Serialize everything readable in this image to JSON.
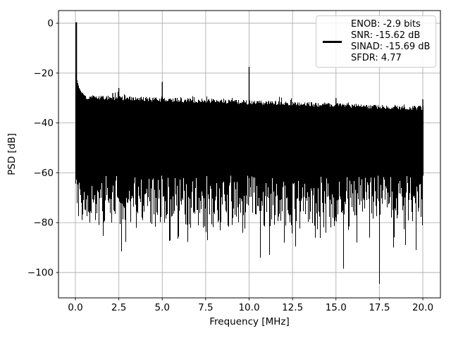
{
  "chart_data": {
    "type": "line",
    "title": "",
    "xlabel": "Frequency [MHz]",
    "ylabel": "PSD [dB]",
    "xticks": [
      0.0,
      2.5,
      5.0,
      7.5,
      10.0,
      12.5,
      15.0,
      17.5,
      20.0
    ],
    "xtick_labels": [
      "0.0",
      "2.5",
      "5.0",
      "7.5",
      "10.0",
      "12.5",
      "15.0",
      "17.5",
      "20.0"
    ],
    "yticks": [
      0,
      -20,
      -40,
      -60,
      -80,
      -100
    ],
    "ytick_labels": [
      "0",
      "−20",
      "−40",
      "−60",
      "−80",
      "−100"
    ],
    "xlim": [
      -1.0,
      21.0
    ],
    "ylim": [
      -110.2,
      5.1
    ],
    "grid": true,
    "grid_color": "#b0b0b0",
    "line_color": "#000000",
    "background_color": "#ffffff",
    "legend": {
      "position": "upper right",
      "lines": [
        "ENOB: -2.9 bits",
        "SNR: -15.62 dB",
        "SINAD: -15.69 dB",
        "SFDR: 4.77"
      ]
    },
    "metrics": {
      "enob_bits": -2.9,
      "snr_db": -15.62,
      "sinad_db": -15.69,
      "sfdr": 4.77
    },
    "series": [
      {
        "name": "psd",
        "freq_range_mhz": [
          0,
          20
        ],
        "carrier": {
          "freq_mhz": 0.05,
          "level_db": 0.0
        },
        "spurs": [
          [
            2.15,
            -28.0
          ],
          [
            2.5,
            -26.0
          ],
          [
            5.0,
            -23.5
          ],
          [
            10.0,
            -17.5
          ],
          [
            10.25,
            -31.5
          ],
          [
            15.0,
            -30.0
          ],
          [
            20.0,
            -30.5
          ]
        ],
        "carrier_skirt_db": [
          [
            0.0,
            -20.0
          ],
          [
            0.1,
            -23.5
          ],
          [
            0.2,
            -26.0
          ],
          [
            0.35,
            -28.0
          ],
          [
            0.6,
            -29.5
          ]
        ],
        "noise_top_db": [
          [
            0,
            -29.5
          ],
          [
            20,
            -34.0
          ]
        ],
        "noise_bottom_typical_db": -70,
        "deep_notches": [
          [
            0.35,
            -79
          ],
          [
            0.8,
            -80
          ],
          [
            1.35,
            -81
          ],
          [
            2.05,
            -80
          ],
          [
            2.65,
            -91.5
          ],
          [
            3.5,
            -82
          ],
          [
            4.3,
            -80
          ],
          [
            5.1,
            -80
          ],
          [
            5.9,
            -86.5
          ],
          [
            6.6,
            -82
          ],
          [
            7.6,
            -87
          ],
          [
            8.3,
            -83
          ],
          [
            9.0,
            -81
          ],
          [
            9.6,
            -84
          ],
          [
            10.63,
            -94
          ],
          [
            11.15,
            -93
          ],
          [
            12.0,
            -88
          ],
          [
            12.67,
            -89.5
          ],
          [
            13.8,
            -86
          ],
          [
            14.4,
            -84
          ],
          [
            15.4,
            -98.5
          ],
          [
            16.2,
            -88
          ],
          [
            16.9,
            -86
          ],
          [
            17.47,
            -104.5
          ],
          [
            18.3,
            -90
          ],
          [
            19.0,
            -89
          ],
          [
            19.6,
            -91
          ]
        ]
      }
    ]
  }
}
